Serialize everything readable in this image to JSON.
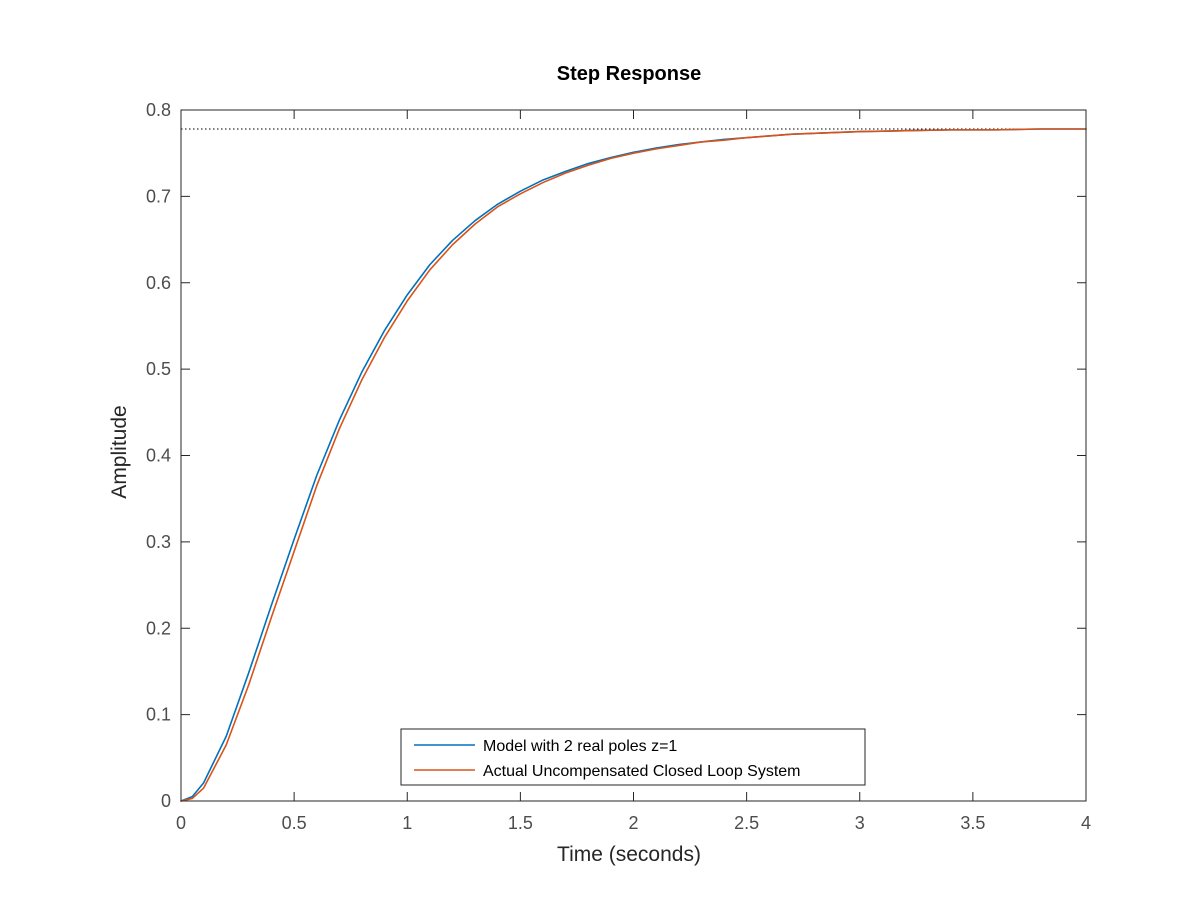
{
  "chart_data": {
    "type": "line",
    "title": "Step Response",
    "xlabel": "Time (seconds)",
    "ylabel": "Amplitude",
    "xlim": [
      0,
      4
    ],
    "ylim": [
      0,
      0.8
    ],
    "xticks": [
      0,
      0.5,
      1,
      1.5,
      2,
      2.5,
      3,
      3.5,
      4
    ],
    "xtick_labels": [
      "0",
      "0.5",
      "1",
      "1.5",
      "2",
      "2.5",
      "3",
      "3.5",
      "4"
    ],
    "yticks": [
      0,
      0.1,
      0.2,
      0.3,
      0.4,
      0.5,
      0.6,
      0.7,
      0.8
    ],
    "ytick_labels": [
      "0",
      "0.1",
      "0.2",
      "0.3",
      "0.4",
      "0.5",
      "0.6",
      "0.7",
      "0.8"
    ],
    "grid": false,
    "legend_position": "bottom-center",
    "steady_state_value": 0.778,
    "steady_state_style": "dotted",
    "steady_state_color": "#000000",
    "series": [
      {
        "name": "Model with 2 real poles z=1",
        "color": "#0072BD",
        "x": [
          0,
          0.05,
          0.1,
          0.2,
          0.3,
          0.4,
          0.5,
          0.6,
          0.7,
          0.8,
          0.9,
          1.0,
          1.1,
          1.2,
          1.3,
          1.4,
          1.5,
          1.6,
          1.7,
          1.8,
          1.9,
          2.0,
          2.1,
          2.2,
          2.3,
          2.4,
          2.5,
          2.6,
          2.7,
          2.8,
          2.9,
          3.0,
          3.2,
          3.4,
          3.6,
          3.8,
          4.0
        ],
        "y": [
          0,
          0.005,
          0.021,
          0.075,
          0.149,
          0.227,
          0.303,
          0.377,
          0.441,
          0.497,
          0.545,
          0.586,
          0.621,
          0.649,
          0.672,
          0.691,
          0.706,
          0.719,
          0.729,
          0.738,
          0.745,
          0.751,
          0.756,
          0.76,
          0.763,
          0.766,
          0.768,
          0.77,
          0.772,
          0.773,
          0.774,
          0.775,
          0.776,
          0.777,
          0.777,
          0.778,
          0.778
        ]
      },
      {
        "name": "Actual Uncompensated Closed Loop System",
        "color": "#D95319",
        "x": [
          0,
          0.05,
          0.1,
          0.2,
          0.3,
          0.4,
          0.5,
          0.6,
          0.7,
          0.8,
          0.9,
          1.0,
          1.1,
          1.2,
          1.3,
          1.4,
          1.5,
          1.6,
          1.7,
          1.8,
          1.9,
          2.0,
          2.1,
          2.2,
          2.3,
          2.4,
          2.5,
          2.6,
          2.7,
          2.8,
          2.9,
          3.0,
          3.2,
          3.4,
          3.6,
          3.8,
          4.0
        ],
        "y": [
          0,
          0.003,
          0.015,
          0.065,
          0.135,
          0.213,
          0.289,
          0.365,
          0.431,
          0.488,
          0.537,
          0.579,
          0.615,
          0.644,
          0.668,
          0.688,
          0.703,
          0.716,
          0.727,
          0.736,
          0.744,
          0.75,
          0.755,
          0.759,
          0.763,
          0.765,
          0.768,
          0.77,
          0.772,
          0.773,
          0.774,
          0.775,
          0.776,
          0.777,
          0.777,
          0.778,
          0.778
        ]
      }
    ]
  }
}
